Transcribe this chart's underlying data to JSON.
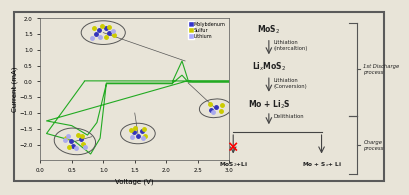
{
  "bg_color": "#e8e4d8",
  "border_color": "#5a5a5a",
  "cv_line_color": "#22aa22",
  "cv_xlim": [
    0.0,
    3.0
  ],
  "cv_ylim": [
    -2.5,
    2.0
  ],
  "cv_xticks": [
    0.0,
    0.5,
    1.0,
    1.5,
    2.0,
    2.5,
    3.0
  ],
  "cv_yticks": [
    -2.0,
    -1.5,
    -1.0,
    -0.5,
    0.0,
    0.5,
    1.0,
    1.5,
    2.0
  ],
  "cv_xlabel": "Voltage (V)",
  "cv_ylabel": "Current (mA)",
  "legend_labels": [
    "Molybdenum",
    "Sulfur",
    "Lithium"
  ],
  "legend_colors": [
    "#3333cc",
    "#cccc00",
    "#aaaaff"
  ],
  "ellipse_color": "#555555",
  "atom_mo_color": "#3333bb",
  "atom_s_color": "#cccc00",
  "atom_li_color": "#aaaaee",
  "scheme_text_color": "#222222",
  "arrow_color": "#444444",
  "bracket_color": "#555555",
  "discharge_label": "1st Discharge\nprocess",
  "charge_label": "Charge\nprocess",
  "bottom_left_label": "MoS$_2$+Li",
  "bottom_right_label": "Mo + S$_x$+ Li"
}
